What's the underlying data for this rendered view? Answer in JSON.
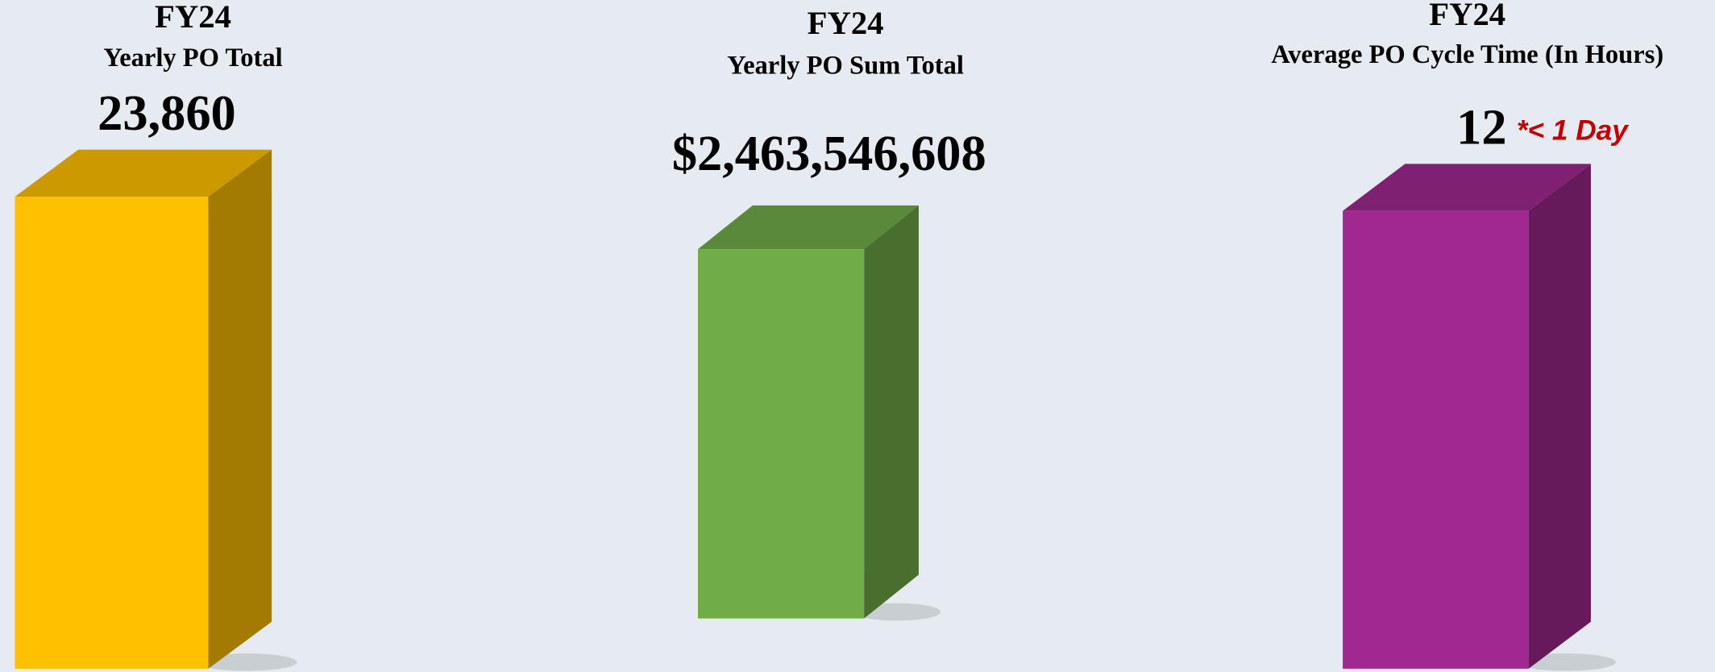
{
  "chart_data": [
    {
      "type": "bar",
      "title": "FY24",
      "subtitle": "Yearly PO Total",
      "values": [
        23860
      ],
      "value_labels": [
        "23,860"
      ],
      "color": "#ffc000"
    },
    {
      "type": "bar",
      "title": "FY24",
      "subtitle": "Yearly PO Sum Total",
      "values": [
        2463546608
      ],
      "value_labels": [
        "$2,463,546,608"
      ],
      "color": "#70ad47"
    },
    {
      "type": "bar",
      "title": "FY24",
      "subtitle": "Average PO Cycle Time (In Hours)",
      "values": [
        12
      ],
      "value_labels": [
        "12"
      ],
      "annotation": "*< 1 Day",
      "color": "#a0288f"
    }
  ]
}
